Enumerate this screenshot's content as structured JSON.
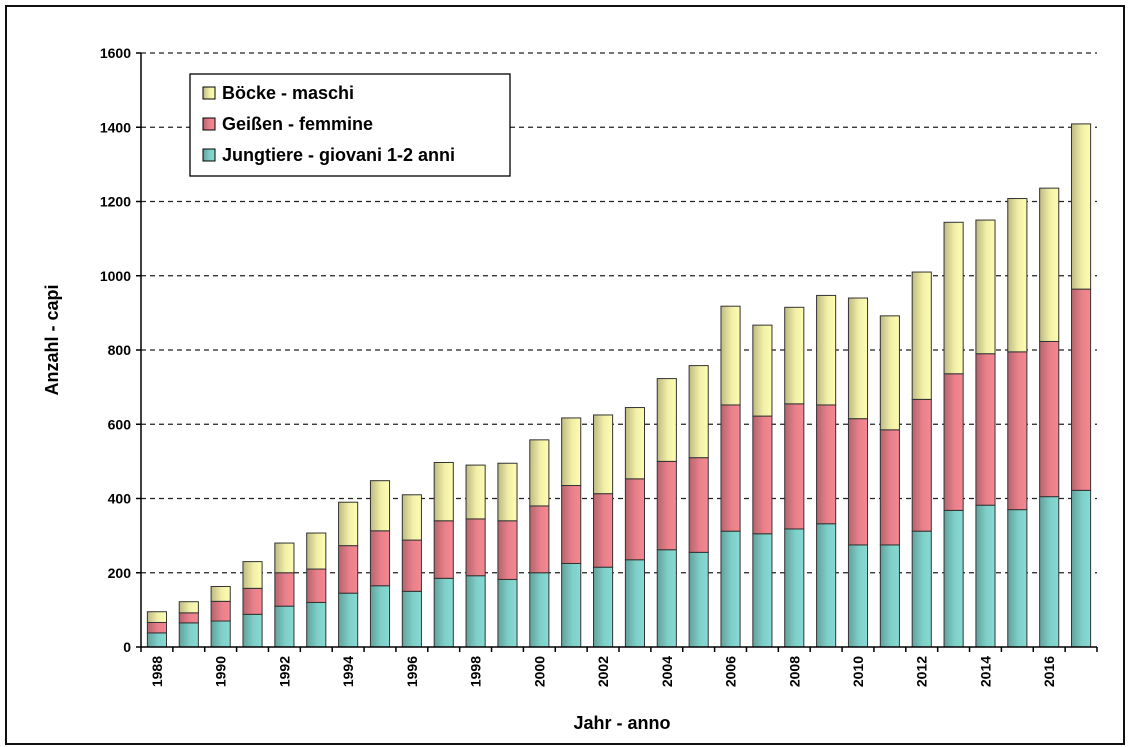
{
  "chart_data": {
    "type": "bar",
    "stacked": true,
    "xlabel": "Jahr - anno",
    "ylabel": "Anzahl - capi",
    "ylim": [
      0,
      1600
    ],
    "yticks": [
      0,
      200,
      400,
      600,
      800,
      1000,
      1200,
      1400,
      1600
    ],
    "grid": "horizontal dashed",
    "legend_position": "top-left",
    "categories": [
      "1988",
      "1989",
      "1990",
      "1991",
      "1992",
      "1993",
      "1994",
      "1995",
      "1996",
      "1997",
      "1998",
      "1999",
      "2000",
      "2001",
      "2002",
      "2003",
      "2004",
      "2005",
      "2006",
      "2007",
      "2008",
      "2009",
      "2010",
      "2011",
      "2012",
      "2013",
      "2014",
      "2015",
      "2016",
      "2017"
    ],
    "tick_labels_shown": [
      "1988",
      "",
      "1990",
      "",
      "1992",
      "",
      "1994",
      "",
      "1996",
      "",
      "1998",
      "",
      "2000",
      "",
      "2002",
      "",
      "2004",
      "",
      "2006",
      "",
      "2008",
      "",
      "2010",
      "",
      "2012",
      "",
      "2014",
      "",
      "2016",
      ""
    ],
    "series": [
      {
        "name": "Jungtiere - giovani 1-2 anni",
        "color": "#7ecfc8",
        "values": [
          38,
          65,
          70,
          88,
          110,
          120,
          145,
          165,
          150,
          185,
          192,
          182,
          200,
          225,
          215,
          235,
          262,
          255,
          312,
          305,
          318,
          332,
          275,
          275,
          312,
          368,
          382,
          370,
          405,
          422
        ]
      },
      {
        "name": "Geißen - femmine",
        "color": "#e8808a",
        "values": [
          28,
          27,
          53,
          70,
          90,
          90,
          128,
          148,
          138,
          155,
          153,
          158,
          180,
          210,
          198,
          218,
          238,
          255,
          340,
          317,
          337,
          320,
          340,
          310,
          355,
          368,
          408,
          425,
          418,
          542
        ]
      },
      {
        "name": "Böcke - maschi",
        "color": "#f2efa8",
        "values": [
          29,
          30,
          40,
          72,
          80,
          97,
          117,
          135,
          122,
          157,
          145,
          155,
          178,
          182,
          212,
          192,
          223,
          248,
          266,
          245,
          260,
          295,
          325,
          307,
          343,
          408,
          360,
          413,
          413,
          445
        ]
      }
    ],
    "legend_order": [
      "Böcke - maschi",
      "Geißen - femmine",
      "Jungtiere - giovani 1-2 anni"
    ]
  }
}
